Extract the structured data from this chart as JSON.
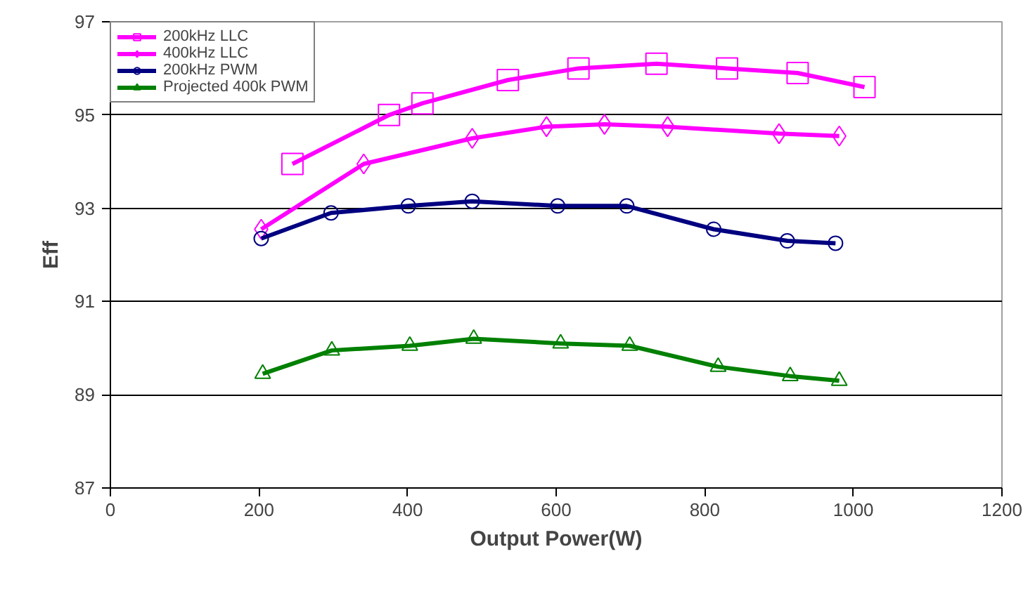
{
  "chart_data": {
    "type": "line",
    "xlabel": "Output Power(W)",
    "ylabel": "Eff",
    "xlim": [
      0,
      1200
    ],
    "xticks": [
      0,
      200,
      400,
      600,
      800,
      1000,
      1200
    ],
    "ylim": [
      87,
      97
    ],
    "yticks": [
      87,
      89,
      91,
      93,
      95,
      97
    ],
    "grid": "y",
    "legend": "top left",
    "line_style": "solid",
    "series": [
      {
        "name": "200kHz LLC",
        "color": "#ff00ff",
        "marker": "square",
        "x": [
          245,
          375,
          420,
          535,
          630,
          735,
          830,
          925,
          1015
        ],
        "values": [
          93.95,
          95.0,
          95.25,
          95.75,
          96.0,
          96.1,
          96.0,
          95.9,
          95.6
        ]
      },
      {
        "name": "400kHz LLC",
        "color": "#ff00ff",
        "marker": "diamond",
        "x": [
          203,
          341,
          487,
          587,
          665,
          750,
          900,
          981
        ],
        "values": [
          92.55,
          93.95,
          94.5,
          94.75,
          94.8,
          94.75,
          94.6,
          94.55
        ]
      },
      {
        "name": "200kHz PWM",
        "color": "#000080",
        "marker": "circle",
        "x": [
          203,
          297,
          401,
          487,
          602,
          695,
          812,
          911,
          976
        ],
        "values": [
          92.35,
          92.9,
          93.05,
          93.15,
          93.05,
          93.05,
          92.55,
          92.3,
          92.25
        ]
      },
      {
        "name": "Projected 400k PWM",
        "color": "#008000",
        "marker": "triangle",
        "x": [
          205,
          298,
          403,
          489,
          606,
          699,
          818,
          915,
          981
        ],
        "values": [
          89.45,
          89.95,
          90.05,
          90.2,
          90.1,
          90.05,
          89.6,
          89.4,
          89.3
        ]
      }
    ]
  }
}
